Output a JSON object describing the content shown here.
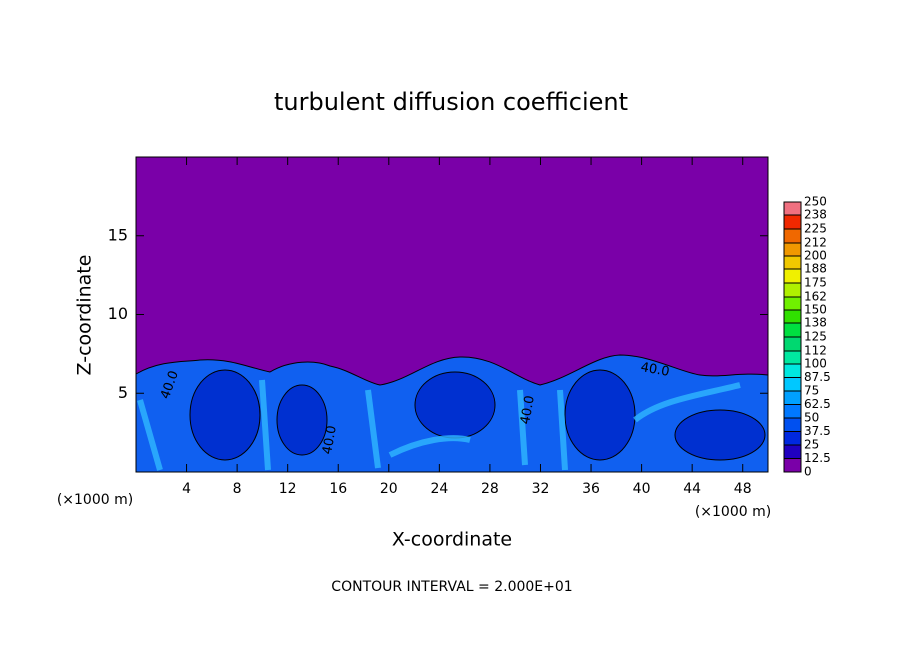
{
  "chart_data": {
    "type": "contour",
    "title": "turbulent diffusion coefficient",
    "x_label": "X-coordinate",
    "y_label": "Z-coordinate",
    "x_unit": "(×1000 m)",
    "footnote": "CONTOUR INTERVAL = 2.000E+01",
    "xlim": [
      0,
      50
    ],
    "xticks": [
      4,
      8,
      12,
      16,
      20,
      24,
      28,
      32,
      36,
      40,
      44,
      48
    ],
    "ylim": [
      0,
      20
    ],
    "yticks": [
      5,
      10,
      15
    ],
    "contour_labels": [
      "40.0",
      "40.0",
      "40.0",
      "40.0"
    ],
    "colorbar": {
      "levels": [
        0,
        12.5,
        25,
        37.5,
        50,
        62.5,
        75,
        87.5,
        100,
        112,
        125,
        138,
        150,
        162,
        175,
        188,
        200,
        212,
        225,
        238,
        250
      ],
      "colors": [
        "#7a00a8",
        "#2000c0",
        "#0028e0",
        "#0050f0",
        "#0078ff",
        "#00a0ff",
        "#00c8ff",
        "#00e8e0",
        "#00e8a0",
        "#00d870",
        "#00e040",
        "#30e000",
        "#70f000",
        "#b0f000",
        "#f0f000",
        "#f0c800",
        "#f09800",
        "#f06800",
        "#f02800",
        "#f07080"
      ]
    }
  }
}
